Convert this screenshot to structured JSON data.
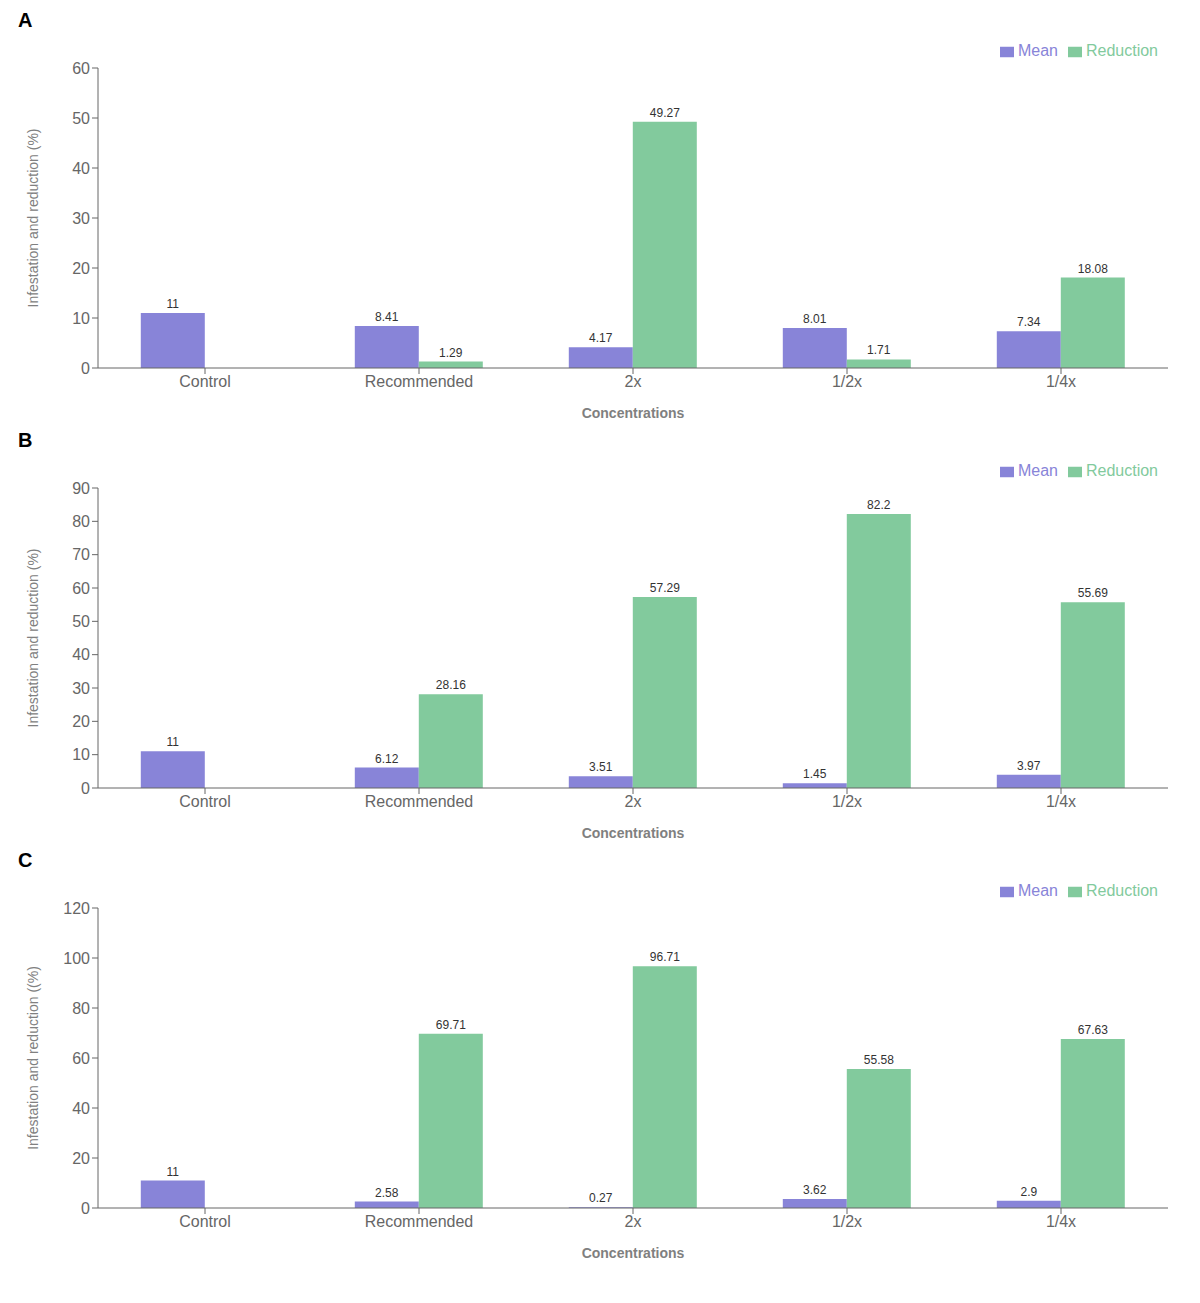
{
  "chart_data": [
    {
      "type": "bar",
      "title": "A",
      "xlabel": "Concentrations",
      "ylabel": "Infestation and reduction (%)",
      "categories": [
        "Control",
        "Recommended",
        "2x",
        "1/2x",
        "1/4x"
      ],
      "series": [
        {
          "name": "Mean",
          "color": "#8884d8",
          "values": [
            11,
            8.41,
            4.17,
            8.01,
            7.34
          ]
        },
        {
          "name": "Reduction",
          "color": "#82ca9d",
          "values": [
            0,
            1.29,
            49.27,
            1.71,
            18.08
          ]
        }
      ],
      "ylim": [
        0,
        60
      ],
      "yticks": [
        0,
        10,
        20,
        30,
        40,
        50,
        60
      ],
      "grid": false,
      "legend": "upper right",
      "data_labels": true
    },
    {
      "type": "bar",
      "title": "B",
      "xlabel": "Concentrations",
      "ylabel": "Infestation and reduction (%)",
      "categories": [
        "Control",
        "Recommended",
        "2x",
        "1/2x",
        "1/4x"
      ],
      "series": [
        {
          "name": "Mean",
          "color": "#8884d8",
          "values": [
            11,
            6.12,
            3.51,
            1.45,
            3.97
          ]
        },
        {
          "name": "Reduction",
          "color": "#82ca9d",
          "values": [
            0,
            28.16,
            57.29,
            82.2,
            55.69
          ]
        }
      ],
      "ylim": [
        0,
        90
      ],
      "yticks": [
        0,
        10,
        20,
        30,
        40,
        50,
        60,
        70,
        80,
        90
      ],
      "grid": false,
      "legend": "upper right",
      "data_labels": true
    },
    {
      "type": "bar",
      "title": "C",
      "xlabel": "Concentrations",
      "ylabel": "Infestation and reduction ((%)",
      "categories": [
        "Control",
        "Recommended",
        "2x",
        "1/2x",
        "1/4x"
      ],
      "series": [
        {
          "name": "Mean",
          "color": "#8884d8",
          "values": [
            11,
            2.58,
            0.27,
            3.62,
            2.9
          ]
        },
        {
          "name": "Reduction",
          "color": "#82ca9d",
          "values": [
            0,
            69.71,
            96.71,
            55.58,
            67.63
          ]
        }
      ],
      "ylim": [
        0,
        120
      ],
      "yticks": [
        0,
        20,
        40,
        60,
        80,
        100,
        120
      ],
      "grid": false,
      "legend": "upper right",
      "data_labels": true
    }
  ]
}
